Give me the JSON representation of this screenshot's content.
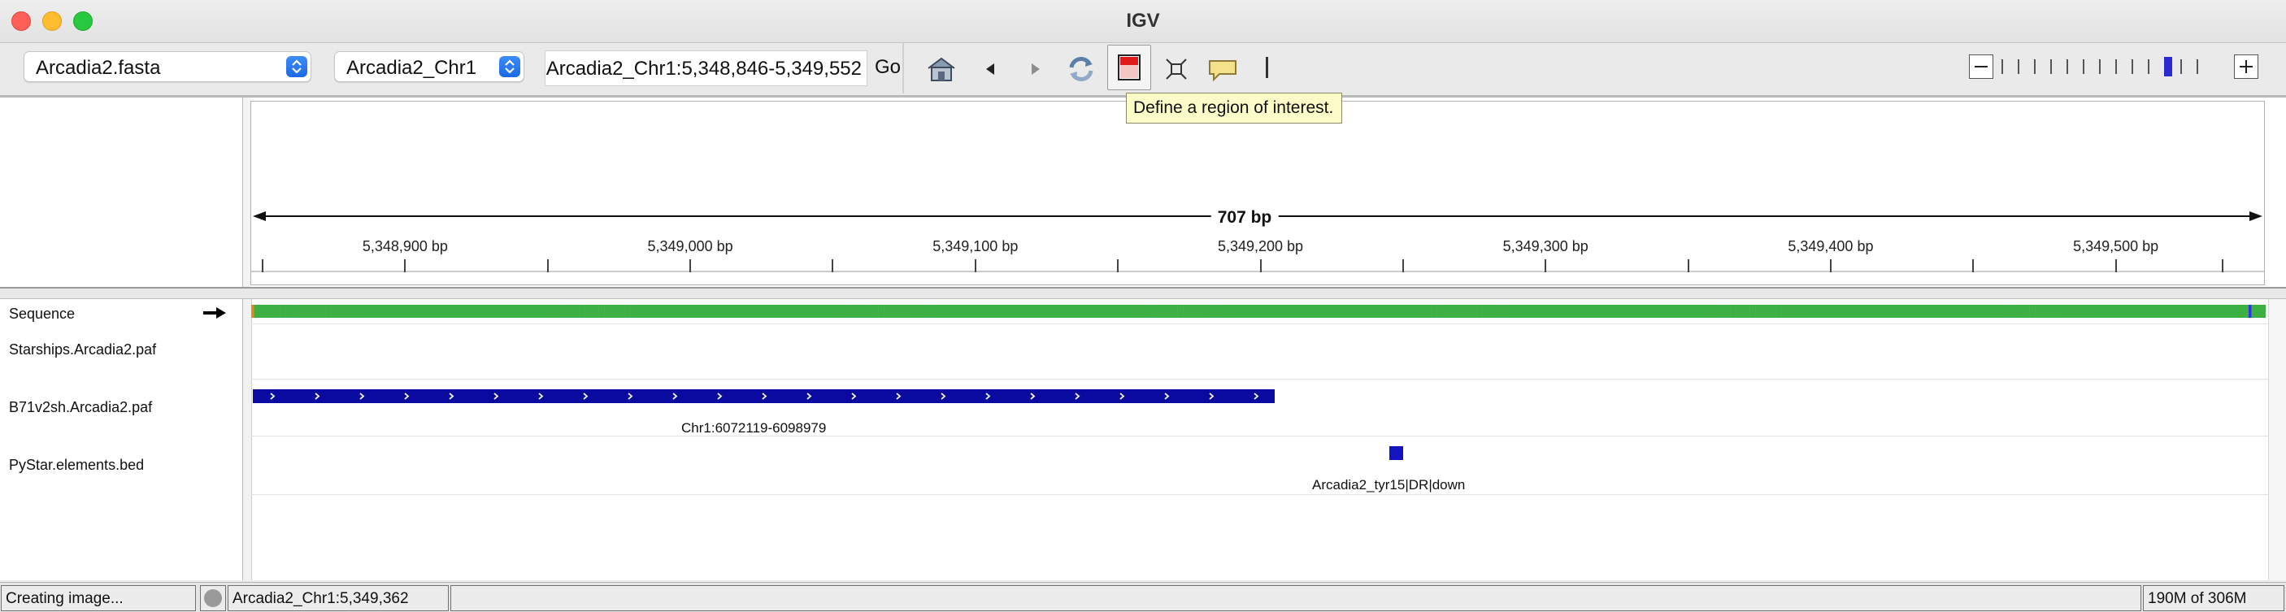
{
  "window": {
    "title": "IGV",
    "traffic_lights": {
      "close": "#fe5f57",
      "minimize": "#febc2e",
      "maximize": "#28c840"
    }
  },
  "toolbar": {
    "genome_select": "Arcadia2.fasta",
    "chromosome_select": "Arcadia2_Chr1",
    "locus_input": "Arcadia2_Chr1:5,348,846-5,349,552",
    "go_label": "Go",
    "icons": [
      "home-icon",
      "back-arrow-icon",
      "forward-arrow-icon",
      "refresh-icon",
      "region-of-interest-icon",
      "fit-to-window-icon",
      "popup-info-icon"
    ],
    "zoom_level_fraction": 0.86,
    "zoom_tick_count": 13
  },
  "tooltip": {
    "text": "Define a region of interest."
  },
  "ruler": {
    "span_label": "707 bp",
    "range_start": 5348846,
    "range_end": 5349552,
    "ticks": [
      {
        "label": "5,348,900 bp"
      },
      {
        "label": "5,349,000 bp"
      },
      {
        "label": "5,349,100 bp"
      },
      {
        "label": "5,349,200 bp"
      },
      {
        "label": "5,349,300 bp"
      },
      {
        "label": "5,349,400 bp"
      },
      {
        "label": "5,349,500 bp"
      }
    ]
  },
  "tracks": [
    {
      "name": "Sequence"
    },
    {
      "name": "Starships.Arcadia2.paf"
    },
    {
      "name": "B71v2sh.Arcadia2.paf",
      "feature_label": "Chr1:6072119-6098979"
    },
    {
      "name": "PyStar.elements.bed",
      "feature_label": "Arcadia2_tyr15|DR|down"
    }
  ],
  "colors": {
    "feature_fill": "#0a0aa0",
    "base_A": "#3cb043",
    "base_C": "#3333e6",
    "base_G": "#e08c1a",
    "base_T": "#e03b3b",
    "tooltip_bg": "#fcfcc8"
  },
  "status": {
    "message": "Creating image...",
    "position": "Arcadia2_Chr1:5,349,362",
    "memory": "190M of 306M"
  }
}
